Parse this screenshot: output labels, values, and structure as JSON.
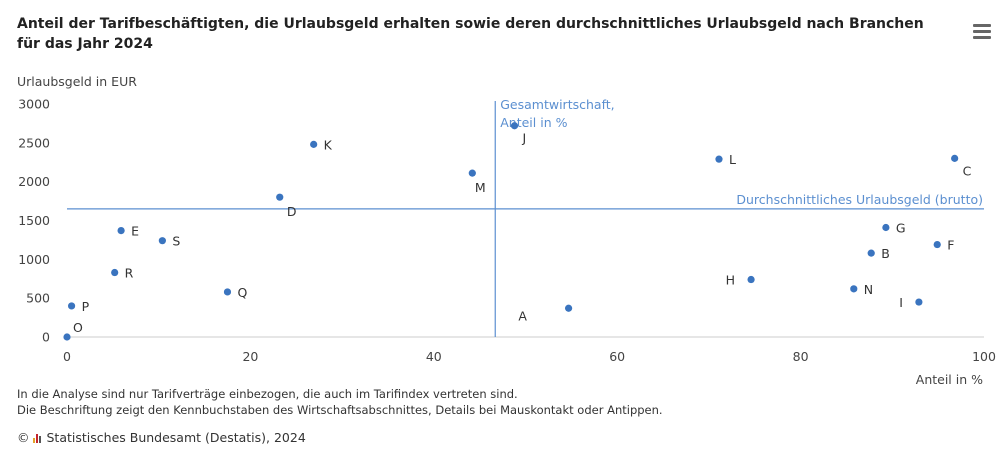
{
  "title": "Anteil der Tarifbeschäftigten, die Urlaubsgeld erhalten sowie deren durchschnittliches Urlaubsgeld nach Branchen für das Jahr 2024",
  "notes": [
    "In die Analyse sind nur Tarifverträge einbezogen, die auch im Tarifindex vertreten sind.",
    "Die Beschriftung zeigt den Kennbuchstaben des Wirtschaftsabschnittes, Details bei Mauskontakt oder Antippen."
  ],
  "credit": {
    "copyright": "©",
    "text": "Statistisches Bundesamt (Destatis), 2024"
  },
  "menu_icon": "hamburger-menu-icon",
  "colors": {
    "point": "#3a74bf",
    "refline": "#5b8fd0",
    "axis_text": "#444444",
    "grid": "#cccccc"
  },
  "chart_data": {
    "type": "scatter",
    "xlabel": "Anteil in %",
    "ylabel": "Urlaubsgeld in EUR",
    "xlim": [
      0,
      100
    ],
    "ylim": [
      0,
      3000
    ],
    "xticks": [
      0,
      20,
      40,
      60,
      80,
      100
    ],
    "yticks": [
      0,
      500,
      1000,
      1500,
      2000,
      2500,
      3000
    ],
    "grid": false,
    "ref_lines": {
      "vertical": {
        "x": 46.7,
        "label_line1": "Gesamtwirtschaft,",
        "label_line2": "Anteil in %"
      },
      "horizontal": {
        "y": 1650,
        "label": "Durchschnittliches Urlaubsgeld (brutto)"
      }
    },
    "points": [
      {
        "label": "A",
        "x": 54.7,
        "y": 370,
        "label_pos": "left-below"
      },
      {
        "label": "B",
        "x": 87.7,
        "y": 1080,
        "label_pos": "right"
      },
      {
        "label": "C",
        "x": 96.8,
        "y": 2300,
        "label_pos": "right-below"
      },
      {
        "label": "D",
        "x": 23.2,
        "y": 1800,
        "label_pos": "below"
      },
      {
        "label": "E",
        "x": 5.9,
        "y": 1370,
        "label_pos": "right"
      },
      {
        "label": "G",
        "x": 89.3,
        "y": 1410,
        "label_pos": "right"
      },
      {
        "label": "F",
        "x": 94.9,
        "y": 1190,
        "label_pos": "right"
      },
      {
        "label": "H",
        "x": 74.6,
        "y": 740,
        "label_pos": "left"
      },
      {
        "label": "I",
        "x": 92.9,
        "y": 450,
        "label_pos": "left"
      },
      {
        "label": "J",
        "x": 48.8,
        "y": 2720,
        "label_pos": "right-below"
      },
      {
        "label": "K",
        "x": 26.9,
        "y": 2480,
        "label_pos": "right"
      },
      {
        "label": "L",
        "x": 71.1,
        "y": 2290,
        "label_pos": "right"
      },
      {
        "label": "M",
        "x": 44.2,
        "y": 2110,
        "label_pos": "below"
      },
      {
        "label": "N",
        "x": 85.8,
        "y": 620,
        "label_pos": "right"
      },
      {
        "label": "O",
        "x": 0,
        "y": 0,
        "label_pos": "right-above"
      },
      {
        "label": "P",
        "x": 0.5,
        "y": 400,
        "label_pos": "right"
      },
      {
        "label": "Q",
        "x": 17.5,
        "y": 580,
        "label_pos": "right"
      },
      {
        "label": "R",
        "x": 5.2,
        "y": 830,
        "label_pos": "right"
      },
      {
        "label": "S",
        "x": 10.4,
        "y": 1240,
        "label_pos": "right"
      }
    ]
  }
}
